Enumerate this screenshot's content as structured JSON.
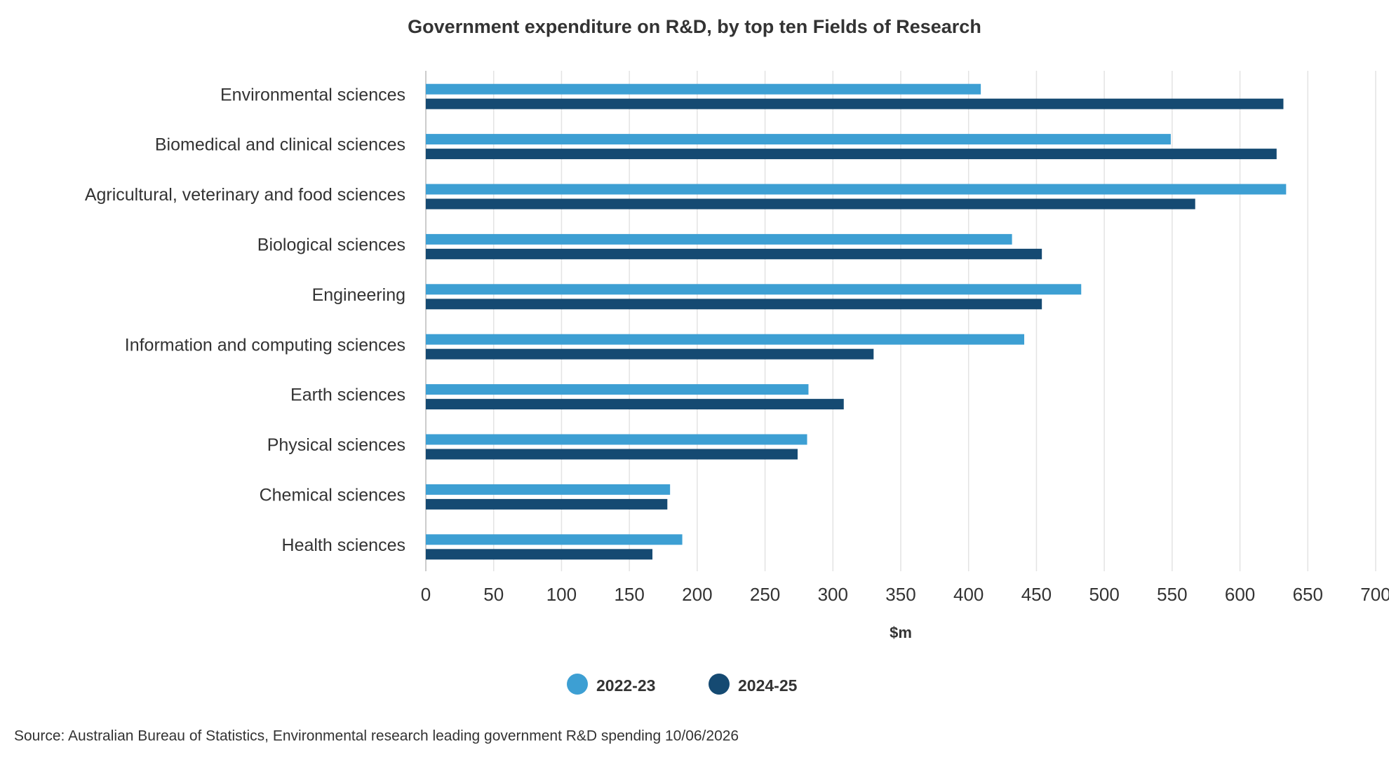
{
  "chart_data": {
    "type": "hbar",
    "title": "Government expenditure on R&D, by top ten Fields of Research",
    "categories": [
      "Environmental sciences",
      "Biomedical and clinical sciences",
      "Agricultural, veterinary and food sciences",
      "Biological sciences",
      "Engineering",
      "Information and computing sciences",
      "Earth sciences",
      "Physical sciences",
      "Chemical sciences",
      "Health sciences"
    ],
    "series": [
      {
        "name": "2022-23",
        "color": "#3d9fd3",
        "values": [
          409,
          549,
          634,
          432,
          483,
          441,
          282,
          281,
          180,
          189
        ]
      },
      {
        "name": "2024-25",
        "color": "#154a72",
        "values": [
          632,
          627,
          567,
          454,
          454,
          330,
          308,
          274,
          178,
          167
        ]
      }
    ],
    "xlabel": "$m",
    "xlim": [
      0,
      700
    ],
    "xticks": [
      0,
      50,
      100,
      150,
      200,
      250,
      300,
      350,
      400,
      450,
      500,
      550,
      600,
      650,
      700
    ],
    "grid": true,
    "legend": "bottom",
    "source": "Source: Australian Bureau of Statistics, Environmental research leading government R&D spending 10/06/2026"
  }
}
